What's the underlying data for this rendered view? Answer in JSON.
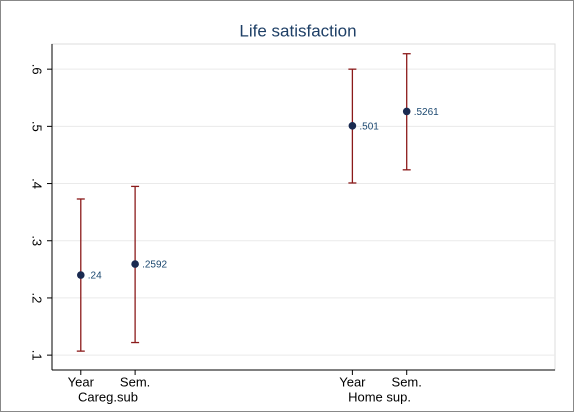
{
  "chart_data": {
    "type": "dot-errorbar",
    "title": "Life satisfaction",
    "x": [
      1,
      2,
      6,
      7
    ],
    "xticks": [
      {
        "value": 1,
        "label": "Year"
      },
      {
        "value": 2,
        "label": "Sem."
      },
      {
        "value": 6,
        "label": "Year"
      },
      {
        "value": 7,
        "label": "Sem."
      }
    ],
    "group_labels": [
      "Careg.sub",
      "Home sup."
    ],
    "xlim": [
      0.47,
      9.73
    ],
    "ylim": [
      0.074,
      0.644
    ],
    "yticks": [
      {
        "value": 0.1,
        "label": ".1"
      },
      {
        "value": 0.2,
        "label": ".2"
      },
      {
        "value": 0.3,
        "label": ".3"
      },
      {
        "value": 0.4,
        "label": ".4"
      },
      {
        "value": 0.5,
        "label": ".5"
      },
      {
        "value": 0.6,
        "label": ".6"
      }
    ],
    "grid": true,
    "series": [
      {
        "color": "#1a2a50",
        "error_color": "#8b1a1a",
        "values": [
          0.24,
          0.2592,
          0.501,
          0.5261
        ],
        "value_labels": [
          ".24",
          ".2592",
          ".501",
          ".5261"
        ],
        "lower": [
          0.107,
          0.122,
          0.401,
          0.424
        ],
        "upper": [
          0.373,
          0.395,
          0.6,
          0.627
        ]
      }
    ]
  }
}
